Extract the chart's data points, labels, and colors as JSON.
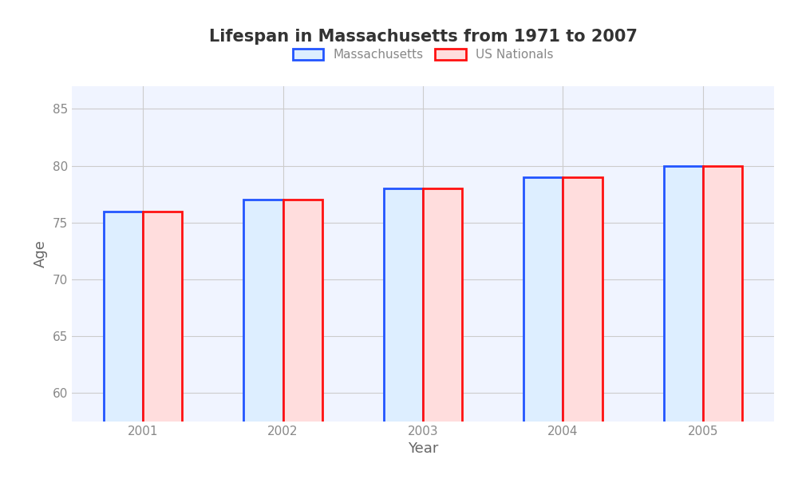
{
  "title": "Lifespan in Massachusetts from 1971 to 2007",
  "xlabel": "Year",
  "ylabel": "Age",
  "years": [
    2001,
    2002,
    2003,
    2004,
    2005
  ],
  "massachusetts": [
    76.0,
    77.0,
    78.0,
    79.0,
    80.0
  ],
  "us_nationals": [
    76.0,
    77.0,
    78.0,
    79.0,
    80.0
  ],
  "ylim": [
    57.5,
    87
  ],
  "yticks": [
    60,
    65,
    70,
    75,
    80,
    85
  ],
  "bar_width": 0.28,
  "mass_face_color": "#ddeeff",
  "mass_edge_color": "#2255ff",
  "us_face_color": "#ffdddd",
  "us_edge_color": "#ff1111",
  "plot_bg_color": "#f0f4ff",
  "fig_bg_color": "#ffffff",
  "grid_color": "#cccccc",
  "title_fontsize": 15,
  "axis_label_fontsize": 13,
  "tick_fontsize": 11,
  "legend_fontsize": 11,
  "tick_color": "#888888",
  "label_color": "#666666"
}
